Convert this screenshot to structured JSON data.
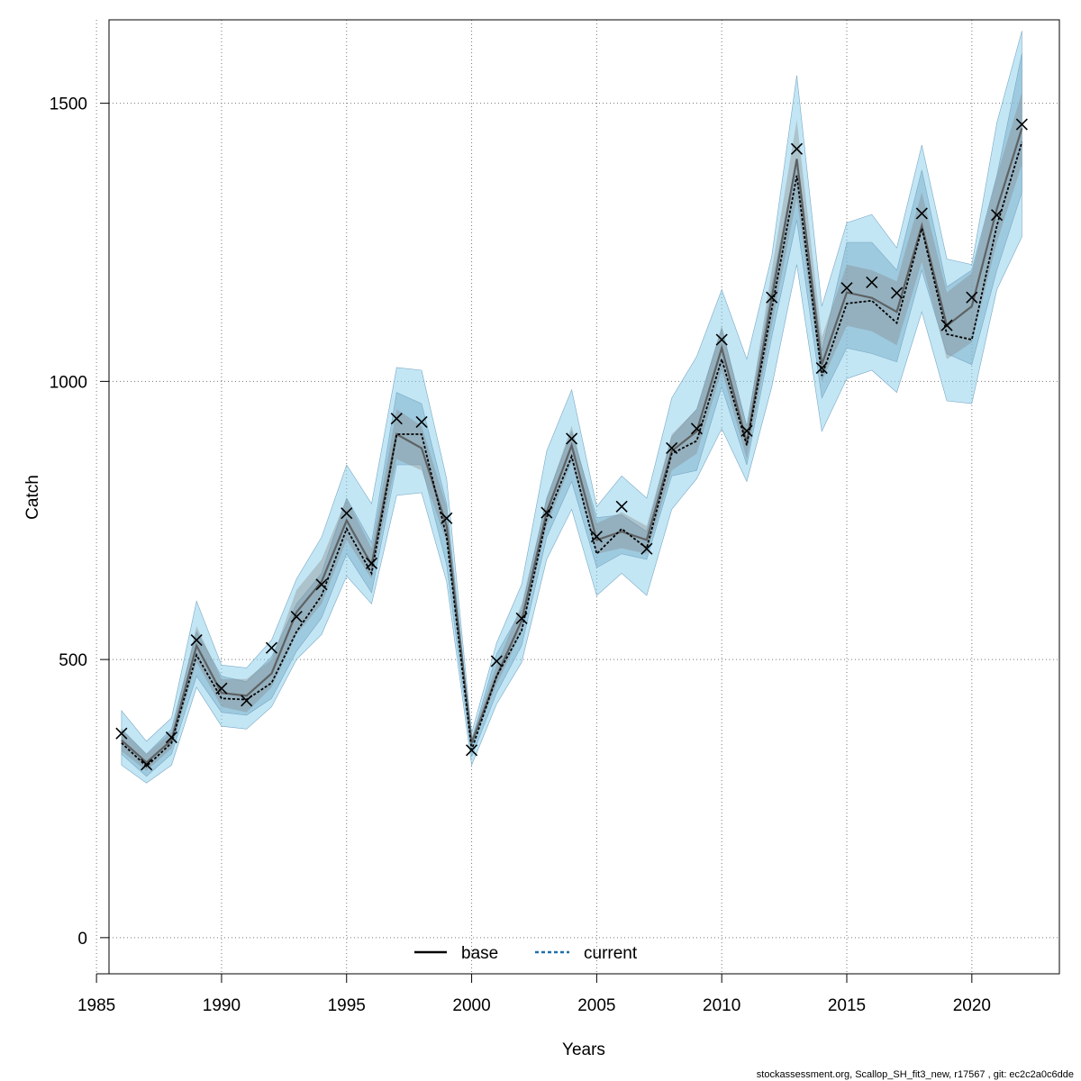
{
  "chart_data": {
    "type": "line",
    "xlabel": "Years",
    "ylabel": "Catch",
    "xlim": [
      1985.5,
      2023.5
    ],
    "ylim": [
      -65,
      1650
    ],
    "x_ticks": [
      1985,
      1990,
      1995,
      2000,
      2005,
      2010,
      2015,
      2020
    ],
    "y_ticks": [
      0,
      500,
      1000,
      1500
    ],
    "grid": true,
    "legend_position": "bottom-center",
    "years": [
      1986,
      1987,
      1988,
      1989,
      1990,
      1991,
      1992,
      1993,
      1994,
      1995,
      1996,
      1997,
      1998,
      1999,
      2000,
      2001,
      2002,
      2003,
      2004,
      2005,
      2006,
      2007,
      2008,
      2009,
      2010,
      2011,
      2012,
      2013,
      2014,
      2015,
      2016,
      2017,
      2018,
      2019,
      2020,
      2021,
      2022
    ],
    "observed": [
      367,
      311,
      360,
      535,
      448,
      426,
      521,
      577,
      635,
      763,
      673,
      933,
      927,
      754,
      337,
      497,
      574,
      764,
      897,
      721,
      775,
      699,
      880,
      915,
      1075,
      911,
      1151,
      1418,
      1024,
      1168,
      1178,
      1159,
      1302,
      1101,
      1151,
      1299,
      1462
    ],
    "series": [
      {
        "name": "base",
        "style": "solid",
        "color": "#000000",
        "values": [
          355,
          315,
          355,
          525,
          440,
          435,
          475,
          585,
          640,
          750,
          670,
          905,
          880,
          740,
          350,
          470,
          570,
          765,
          885,
          715,
          730,
          715,
          875,
          910,
          1060,
          890,
          1150,
          1400,
          1030,
          1160,
          1150,
          1125,
          1280,
          1100,
          1135,
          1310,
          1455
        ],
        "ci_inner": {
          "lower": [
            335,
            300,
            340,
            495,
            415,
            405,
            450,
            545,
            600,
            715,
            645,
            860,
            840,
            710,
            345,
            455,
            550,
            740,
            855,
            690,
            700,
            690,
            840,
            870,
            1020,
            860,
            1100,
            1330,
            1000,
            1100,
            1090,
            1065,
            1215,
            1040,
            1070,
            1250,
            1390
          ],
          "upper": [
            375,
            330,
            370,
            560,
            465,
            465,
            500,
            625,
            680,
            790,
            700,
            950,
            920,
            775,
            360,
            490,
            600,
            790,
            920,
            745,
            765,
            740,
            905,
            950,
            1100,
            920,
            1200,
            1470,
            1080,
            1210,
            1200,
            1180,
            1340,
            1160,
            1195,
            1370,
            1520
          ]
        }
      },
      {
        "name": "current",
        "style": "dashed",
        "color": "#1f6fa8",
        "values": [
          350,
          308,
          350,
          508,
          430,
          428,
          458,
          550,
          615,
          735,
          655,
          905,
          905,
          720,
          338,
          470,
          552,
          755,
          865,
          690,
          735,
          700,
          870,
          893,
          1040,
          885,
          1130,
          1370,
          1010,
          1140,
          1145,
          1105,
          1275,
          1085,
          1075,
          1280,
          1430
        ],
        "ci_inner": {
          "lower": [
            330,
            290,
            330,
            470,
            405,
            400,
            430,
            515,
            575,
            690,
            620,
            850,
            850,
            670,
            325,
            440,
            525,
            720,
            820,
            665,
            690,
            680,
            830,
            840,
            990,
            850,
            1080,
            1290,
            970,
            1060,
            1050,
            1035,
            1200,
            1050,
            1030,
            1200,
            1340
          ],
          "upper": [
            375,
            330,
            375,
            550,
            470,
            460,
            505,
            600,
            655,
            790,
            710,
            980,
            960,
            780,
            355,
            510,
            590,
            790,
            910,
            755,
            760,
            730,
            900,
            950,
            1095,
            920,
            1170,
            1400,
            1055,
            1250,
            1250,
            1200,
            1380,
            1170,
            1200,
            1370,
            1590
          ]
        },
        "ci_outer": {
          "lower": [
            310,
            278,
            310,
            450,
            380,
            375,
            415,
            500,
            545,
            650,
            600,
            795,
            800,
            640,
            310,
            420,
            495,
            680,
            770,
            615,
            655,
            615,
            770,
            825,
            915,
            820,
            990,
            1210,
            910,
            1005,
            1020,
            980,
            1125,
            965,
            960,
            1165,
            1260
          ],
          "upper": [
            408,
            353,
            395,
            605,
            490,
            485,
            535,
            645,
            720,
            850,
            780,
            1025,
            1020,
            825,
            368,
            530,
            635,
            875,
            985,
            775,
            830,
            790,
            970,
            1045,
            1165,
            1040,
            1225,
            1550,
            1135,
            1285,
            1300,
            1240,
            1425,
            1220,
            1210,
            1465,
            1630
          ]
        }
      }
    ]
  },
  "legend": {
    "base_label": "base",
    "current_label": "current"
  },
  "footer": {
    "text": "stockassessment.org, Scallop_SH_fit3_new, r17567 , git: ec2c2a0c6dde"
  }
}
